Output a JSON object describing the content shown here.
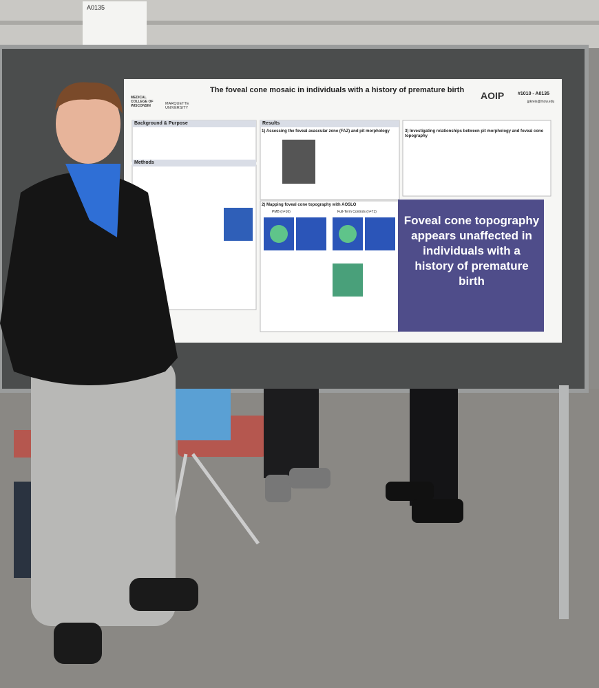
{
  "sign": {
    "label": "A0135"
  },
  "poster": {
    "title": "The foveal cone mosaic in individuals with a history of premature birth",
    "poster_id": "#1010 - A0135",
    "email": "jpkreis@mcw.edu",
    "logos": {
      "left": "MEDICAL COLLEGE OF WISCONSIN",
      "middle": "MARQUETTE UNIVERSITY",
      "right": "AOIP"
    },
    "sections": {
      "background": "Background & Purpose",
      "methods": "Methods",
      "results": "Results",
      "result1": "1) Assessing the foveal avascular zone (FAZ) and pit morphology",
      "result2": "2) Mapping foveal cone topography with AOSLO",
      "result3": "3) Investigating relationships between pit morphology and foveal cone topography"
    },
    "groups": {
      "pmb": "PMB (n=16)",
      "controls": "Full-Term Controls (n=71)"
    },
    "conclusion": "Foveal cone topography appears unaffected in individuals with a history of premature birth"
  }
}
